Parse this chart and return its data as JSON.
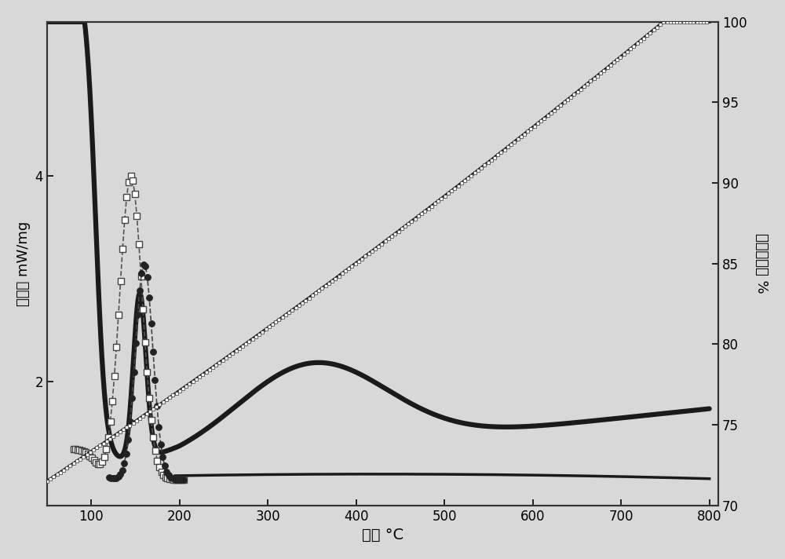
{
  "xlabel": "温度 °C",
  "ylabel_left": "热流量 mW/mg",
  "ylabel_right": "质量百分比 %",
  "xlim": [
    50,
    810
  ],
  "ylim_left": [
    0.8,
    5.5
  ],
  "ylim_right": [
    70,
    100
  ],
  "xticks": [
    100,
    200,
    300,
    400,
    500,
    600,
    700,
    800
  ],
  "yticks_left": [
    2,
    4
  ],
  "yticks_right": [
    70,
    75,
    80,
    85,
    90,
    95,
    100
  ],
  "bg_color": "#d8d8d8",
  "line_dark": "#1a1a1a",
  "line_mid": "#444444",
  "line_light": "#777777"
}
